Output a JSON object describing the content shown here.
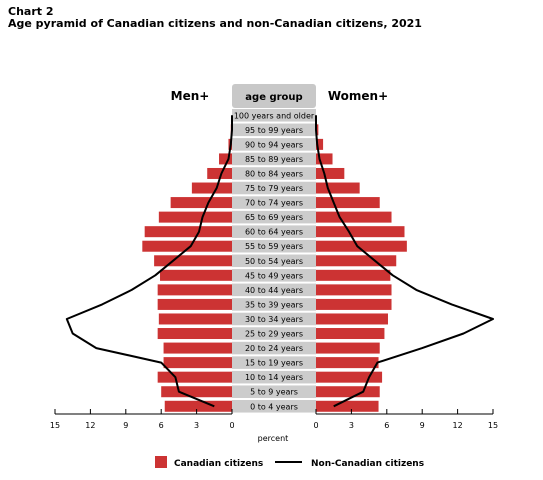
{
  "chart_data": {
    "type": "bar",
    "title_line1": "Chart 2",
    "title_line2": "Age pyramid of Canadian citizens and non-Canadian citizens, 2021",
    "left_label": "Men+",
    "right_label": "Women+",
    "center_header": "age group",
    "xlabel": "percent",
    "xlim": [
      0,
      15
    ],
    "ticks": [
      "15",
      "12",
      "9",
      "6",
      "3",
      "0"
    ],
    "right_ticks": [
      "0",
      "3",
      "6",
      "9",
      "12",
      "15"
    ],
    "categories": [
      "100 years and older",
      "95 to 99 years",
      "90 to 94 years",
      "85 to 89 years",
      "80 to 84 years",
      "75 to 79 years",
      "70 to 74 years",
      "65 to 69 years",
      "60 to 64 years",
      "55 to 59 years",
      "50 to 54 years",
      "45 to 49 years",
      "40 to 44 years",
      "35 to 39 years",
      "30 to 34 years",
      "25 to 29 years",
      "20 to 24 years",
      "15 to 19 years",
      "10 to 14 years",
      "5 to 9 years",
      "0 to 4 years"
    ],
    "series": [
      {
        "name": "Canadian citizens",
        "men": [
          0.0,
          0.1,
          0.3,
          1.1,
          2.1,
          3.4,
          5.2,
          6.2,
          7.4,
          7.6,
          6.6,
          6.1,
          6.3,
          6.3,
          6.2,
          6.3,
          5.8,
          5.8,
          6.3,
          6.0,
          5.7
        ],
        "women": [
          0.0,
          0.2,
          0.6,
          1.4,
          2.4,
          3.7,
          5.4,
          6.4,
          7.5,
          7.7,
          6.8,
          6.3,
          6.4,
          6.4,
          6.1,
          5.8,
          5.4,
          5.3,
          5.6,
          5.4,
          5.3
        ]
      },
      {
        "name": "Non-Canadian citizens",
        "men": [
          0.0,
          0.0,
          0.1,
          0.3,
          0.9,
          1.3,
          2.0,
          2.5,
          2.8,
          3.5,
          5.0,
          6.5,
          8.5,
          11.0,
          14.0,
          13.5,
          11.5,
          6.0,
          4.8,
          4.5,
          1.5
        ],
        "women": [
          0.0,
          0.0,
          0.1,
          0.3,
          0.7,
          1.0,
          1.5,
          2.0,
          2.8,
          3.5,
          5.0,
          6.5,
          8.5,
          11.5,
          15.0,
          12.5,
          9.0,
          5.2,
          4.5,
          4.0,
          1.5
        ]
      }
    ],
    "colors": {
      "bar": "#cc3333",
      "line": "#000000",
      "center_box": "#cccccc",
      "header_box": "#c8c8c8"
    }
  }
}
